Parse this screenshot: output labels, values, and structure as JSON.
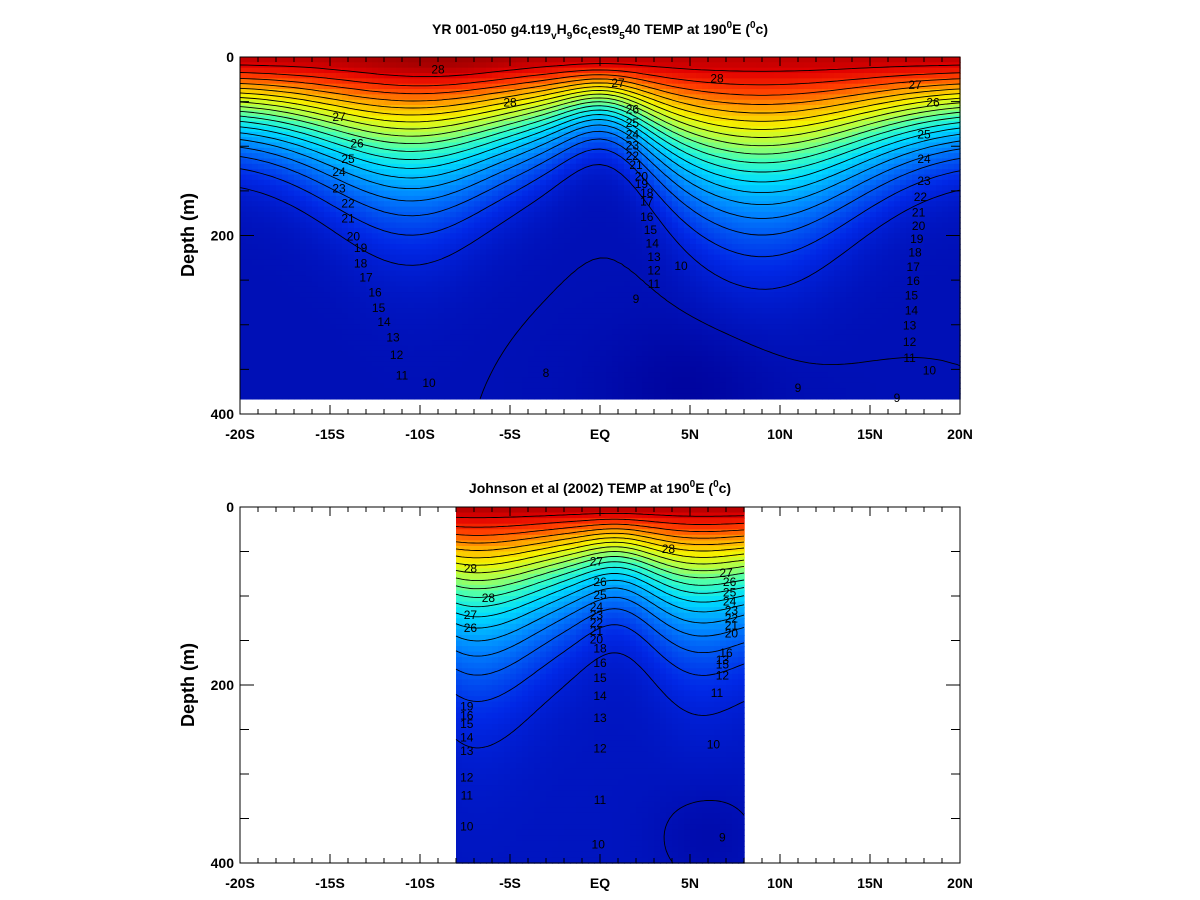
{
  "chart_data": [
    {
      "type": "heatmap",
      "title_parts": [
        "YR 001-050 g4.t19",
        "v",
        "H",
        "9",
        "6c",
        "t",
        "est9",
        "5",
        "40 TEMP at 190",
        "0",
        "E (",
        "0",
        "c)"
      ],
      "ylabel": "Depth (m)",
      "x_tick_labels": [
        "-20S",
        "-15S",
        "-10S",
        "-5S",
        "EQ",
        "5N",
        "10N",
        "15N",
        "20N"
      ],
      "x_ticks": [
        -20,
        -15,
        -10,
        -5,
        0,
        5,
        10,
        15,
        20
      ],
      "y_tick_labels": [
        "0",
        "200",
        "400"
      ],
      "y_ticks": [
        0,
        200,
        400
      ],
      "xlim": [
        -20,
        20
      ],
      "ylim": [
        0,
        400
      ],
      "y_inverted": true,
      "data_xlim": [
        -20,
        20
      ],
      "data_ylim": [
        0,
        383
      ],
      "field_model": "model",
      "contour_levels": [
        8,
        9,
        10,
        11,
        12,
        13,
        14,
        15,
        16,
        17,
        18,
        19,
        20,
        21,
        22,
        23,
        24,
        25,
        26,
        27,
        28
      ],
      "contour_labels": [
        {
          "text": "28",
          "x": -9.0,
          "y": 15
        },
        {
          "text": "28",
          "x": -5.0,
          "y": 52
        },
        {
          "text": "28",
          "x": 6.5,
          "y": 25
        },
        {
          "text": "27",
          "x": -14.5,
          "y": 68
        },
        {
          "text": "27",
          "x": 1.0,
          "y": 30
        },
        {
          "text": "27",
          "x": 17.5,
          "y": 32
        },
        {
          "text": "26",
          "x": -13.5,
          "y": 98
        },
        {
          "text": "26",
          "x": 1.8,
          "y": 60
        },
        {
          "text": "26",
          "x": 18.5,
          "y": 52
        },
        {
          "text": "25",
          "x": -14.0,
          "y": 115
        },
        {
          "text": "25",
          "x": 1.8,
          "y": 75
        },
        {
          "text": "25",
          "x": 18.0,
          "y": 88
        },
        {
          "text": "24",
          "x": -14.5,
          "y": 130
        },
        {
          "text": "24",
          "x": 1.8,
          "y": 88
        },
        {
          "text": "24",
          "x": 18.0,
          "y": 115
        },
        {
          "text": "23",
          "x": -14.5,
          "y": 148
        },
        {
          "text": "23",
          "x": 1.8,
          "y": 100
        },
        {
          "text": "23",
          "x": 18.0,
          "y": 140
        },
        {
          "text": "22",
          "x": -14.0,
          "y": 165
        },
        {
          "text": "22",
          "x": 1.8,
          "y": 112
        },
        {
          "text": "22",
          "x": 17.8,
          "y": 158
        },
        {
          "text": "21",
          "x": -14.0,
          "y": 182
        },
        {
          "text": "21",
          "x": 2.0,
          "y": 122
        },
        {
          "text": "21",
          "x": 17.7,
          "y": 175
        },
        {
          "text": "20",
          "x": -13.7,
          "y": 202
        },
        {
          "text": "20",
          "x": 2.3,
          "y": 135
        },
        {
          "text": "20",
          "x": 17.7,
          "y": 190
        },
        {
          "text": "19",
          "x": -13.3,
          "y": 215
        },
        {
          "text": "19",
          "x": 2.3,
          "y": 143
        },
        {
          "text": "19",
          "x": 17.6,
          "y": 205
        },
        {
          "text": "18",
          "x": -13.3,
          "y": 232
        },
        {
          "text": "18",
          "x": 2.6,
          "y": 153
        },
        {
          "text": "18",
          "x": 17.5,
          "y": 220
        },
        {
          "text": "17",
          "x": -13.0,
          "y": 248
        },
        {
          "text": "17",
          "x": 2.6,
          "y": 163
        },
        {
          "text": "17",
          "x": 17.4,
          "y": 236
        },
        {
          "text": "16",
          "x": -12.5,
          "y": 265
        },
        {
          "text": "16",
          "x": 2.6,
          "y": 180
        },
        {
          "text": "16",
          "x": 17.4,
          "y": 252
        },
        {
          "text": "15",
          "x": -12.3,
          "y": 282
        },
        {
          "text": "15",
          "x": 2.8,
          "y": 195
        },
        {
          "text": "15",
          "x": 17.3,
          "y": 268
        },
        {
          "text": "14",
          "x": -12.0,
          "y": 298
        },
        {
          "text": "14",
          "x": 2.9,
          "y": 210
        },
        {
          "text": "14",
          "x": 17.3,
          "y": 285
        },
        {
          "text": "13",
          "x": -11.5,
          "y": 315
        },
        {
          "text": "13",
          "x": 3.0,
          "y": 225
        },
        {
          "text": "13",
          "x": 17.2,
          "y": 302
        },
        {
          "text": "12",
          "x": -11.3,
          "y": 335
        },
        {
          "text": "12",
          "x": 3.0,
          "y": 240
        },
        {
          "text": "12",
          "x": 17.2,
          "y": 320
        },
        {
          "text": "11",
          "x": -11.0,
          "y": 358
        },
        {
          "text": "11",
          "x": 3.0,
          "y": 255
        },
        {
          "text": "11",
          "x": 17.2,
          "y": 338
        },
        {
          "text": "10",
          "x": -9.5,
          "y": 366
        },
        {
          "text": "10",
          "x": 4.5,
          "y": 235
        },
        {
          "text": "10",
          "x": 18.3,
          "y": 352
        },
        {
          "text": "9",
          "x": 2.0,
          "y": 272
        },
        {
          "text": "9",
          "x": 11.0,
          "y": 372
        },
        {
          "text": "9",
          "x": 16.5,
          "y": 383
        },
        {
          "text": "8",
          "x": -3.0,
          "y": 355
        }
      ]
    },
    {
      "type": "heatmap",
      "title_parts": [
        "Johnson et al (2002) TEMP at 190",
        "0",
        "E (",
        "0",
        "c)"
      ],
      "ylabel": "Depth (m)",
      "x_tick_labels": [
        "-20S",
        "-15S",
        "-10S",
        "-5S",
        "EQ",
        "5N",
        "10N",
        "15N",
        "20N"
      ],
      "x_ticks": [
        -20,
        -15,
        -10,
        -5,
        0,
        5,
        10,
        15,
        20
      ],
      "y_tick_labels": [
        "0",
        "200",
        "400"
      ],
      "y_ticks": [
        0,
        200,
        400
      ],
      "xlim": [
        -20,
        20
      ],
      "ylim": [
        0,
        400
      ],
      "y_inverted": true,
      "data_xlim": [
        -8,
        8
      ],
      "data_ylim": [
        0,
        400
      ],
      "field_model": "obs",
      "contour_levels": [
        8,
        9,
        10,
        11,
        12,
        13,
        14,
        15,
        16,
        17,
        18,
        19,
        20,
        21,
        22,
        23,
        24,
        25,
        26,
        27,
        28
      ],
      "contour_labels": [
        {
          "text": "28",
          "x": -7.2,
          "y": 70
        },
        {
          "text": "28",
          "x": -6.2,
          "y": 103
        },
        {
          "text": "28",
          "x": 3.8,
          "y": 48
        },
        {
          "text": "27",
          "x": -0.2,
          "y": 62
        },
        {
          "text": "27",
          "x": -7.2,
          "y": 122
        },
        {
          "text": "27",
          "x": 7.0,
          "y": 75
        },
        {
          "text": "26",
          "x": -7.2,
          "y": 137
        },
        {
          "text": "26",
          "x": 0.0,
          "y": 85
        },
        {
          "text": "26",
          "x": 7.2,
          "y": 85
        },
        {
          "text": "25",
          "x": 0.0,
          "y": 100
        },
        {
          "text": "25",
          "x": 7.2,
          "y": 97
        },
        {
          "text": "24",
          "x": -0.2,
          "y": 113
        },
        {
          "text": "24",
          "x": 7.2,
          "y": 107
        },
        {
          "text": "23",
          "x": -0.2,
          "y": 122
        },
        {
          "text": "23",
          "x": 7.3,
          "y": 117
        },
        {
          "text": "22",
          "x": -0.2,
          "y": 131
        },
        {
          "text": "22",
          "x": 7.3,
          "y": 126
        },
        {
          "text": "21",
          "x": -0.2,
          "y": 140
        },
        {
          "text": "21",
          "x": 7.3,
          "y": 134
        },
        {
          "text": "20",
          "x": -0.2,
          "y": 150
        },
        {
          "text": "20",
          "x": 7.3,
          "y": 143
        },
        {
          "text": "18",
          "x": 0.0,
          "y": 160
        },
        {
          "text": "16",
          "x": 7.0,
          "y": 165
        },
        {
          "text": "16",
          "x": 0.0,
          "y": 176
        },
        {
          "text": "15",
          "x": 0.0,
          "y": 193
        },
        {
          "text": "15",
          "x": 6.8,
          "y": 178
        },
        {
          "text": "14",
          "x": 0.0,
          "y": 213
        },
        {
          "text": "13",
          "x": 6.8,
          "y": 173
        },
        {
          "text": "13",
          "x": 0.0,
          "y": 238
        },
        {
          "text": "12",
          "x": 6.8,
          "y": 190
        },
        {
          "text": "12",
          "x": 0.0,
          "y": 272
        },
        {
          "text": "11",
          "x": 6.5,
          "y": 210
        },
        {
          "text": "11",
          "x": 0.0,
          "y": 330
        },
        {
          "text": "10",
          "x": 6.3,
          "y": 268
        },
        {
          "text": "10",
          "x": -0.1,
          "y": 380
        },
        {
          "text": "9",
          "x": 6.8,
          "y": 372
        },
        {
          "text": "19",
          "x": -7.4,
          "y": 225
        },
        {
          "text": "16",
          "x": -7.4,
          "y": 235
        },
        {
          "text": "15",
          "x": -7.4,
          "y": 245
        },
        {
          "text": "14",
          "x": -7.4,
          "y": 260
        },
        {
          "text": "13",
          "x": -7.4,
          "y": 275
        },
        {
          "text": "12",
          "x": -7.4,
          "y": 305
        },
        {
          "text": "11",
          "x": -7.4,
          "y": 325
        },
        {
          "text": "10",
          "x": -7.4,
          "y": 360
        }
      ]
    }
  ]
}
